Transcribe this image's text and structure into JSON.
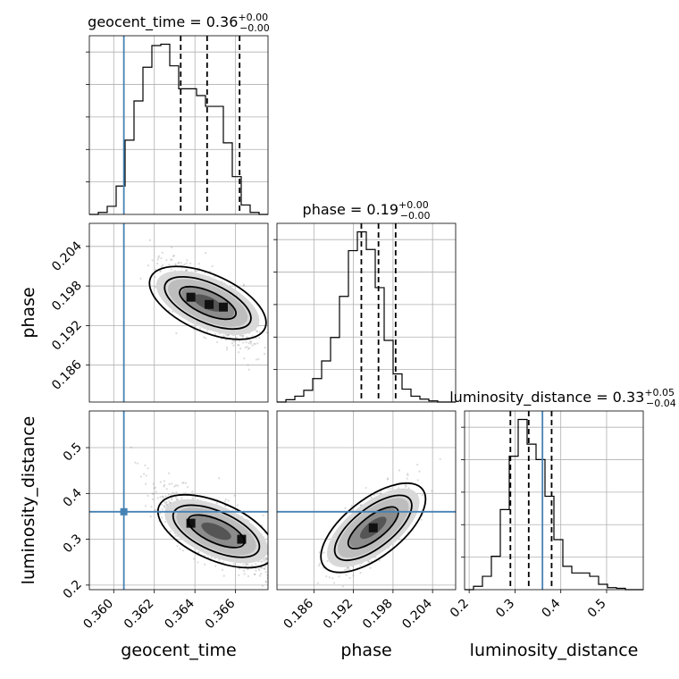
{
  "chart_data": {
    "type": "corner",
    "parameters": [
      {
        "key": "geocent_time",
        "label": "geocent_time",
        "title": "geocent_time = 0.36",
        "title_err_plus": "+0.00",
        "title_err_minus": "−0.00",
        "range": [
          0.3588,
          0.3676
        ],
        "ticks": [
          0.36,
          0.362,
          0.364,
          0.366
        ],
        "tick_labels": [
          "0.360",
          "0.362",
          "0.364",
          "0.366"
        ],
        "truth": 0.3605,
        "quantiles": [
          0.3633,
          0.3646,
          0.3662
        ],
        "hist": {
          "edges_start": 0.3588,
          "bin_width": 0.00044,
          "counts": [
            0,
            3,
            12,
            42,
            110,
            168,
            218,
            250,
            252,
            220,
            186,
            186,
            176,
            160,
            160,
            106,
            56,
            14,
            3,
            0
          ]
        }
      },
      {
        "key": "phase",
        "label": "phase",
        "title": "phase = 0.19",
        "title_err_plus": "+0.00",
        "title_err_minus": "−0.00",
        "range": [
          0.1804,
          0.2075
        ],
        "ticks": [
          0.186,
          0.192,
          0.198,
          0.204
        ],
        "tick_labels": [
          "0.186",
          "0.192",
          "0.198",
          "0.204"
        ],
        "quantiles": [
          0.1932,
          0.1958,
          0.1984
        ],
        "hist": {
          "edges_start": 0.1804,
          "bin_width": 0.001355,
          "counts": [
            0,
            4,
            10,
            20,
            40,
            70,
            110,
            180,
            258,
            290,
            260,
            195,
            105,
            48,
            22,
            10,
            5,
            2,
            0,
            0
          ]
        }
      },
      {
        "key": "luminosity_distance",
        "label": "luminosity_distance",
        "title": "luminosity_distance = 0.33",
        "title_err_plus": "+0.05",
        "title_err_minus": "−0.04",
        "range": [
          0.19,
          0.58
        ],
        "ticks": [
          0.2,
          0.3,
          0.4,
          0.5
        ],
        "tick_labels": [
          "0.2",
          "0.3",
          "0.4",
          "0.5"
        ],
        "truth": 0.36,
        "quantiles": [
          0.29,
          0.33,
          0.38
        ],
        "hist": {
          "edges_start": 0.19,
          "bin_width": 0.0195,
          "counts": [
            0,
            5,
            20,
            50,
            120,
            200,
            255,
            218,
            195,
            140,
            75,
            35,
            25,
            25,
            20,
            8,
            3,
            2,
            0,
            0
          ]
        }
      }
    ],
    "scatter_2d": [
      {
        "x": "geocent_time",
        "y": "phase",
        "truth_x": 0.3605,
        "truth_y": null,
        "density_peaks": [
          [
            0.3638,
            0.1963
          ],
          [
            0.3647,
            0.1952
          ],
          [
            0.3654,
            0.1948
          ]
        ],
        "correlation": "negative"
      },
      {
        "x": "geocent_time",
        "y": "luminosity_distance",
        "truth_x": 0.3605,
        "truth_y": 0.36,
        "density_peaks": [
          [
            0.3638,
            0.335
          ],
          [
            0.3663,
            0.3
          ]
        ],
        "correlation": "negative"
      },
      {
        "x": "phase",
        "y": "luminosity_distance",
        "truth_x": null,
        "truth_y": 0.36,
        "density_peaks": [
          [
            0.195,
            0.325
          ]
        ],
        "correlation": "positive"
      }
    ],
    "truth_color": "#4682b4",
    "grid": true
  }
}
